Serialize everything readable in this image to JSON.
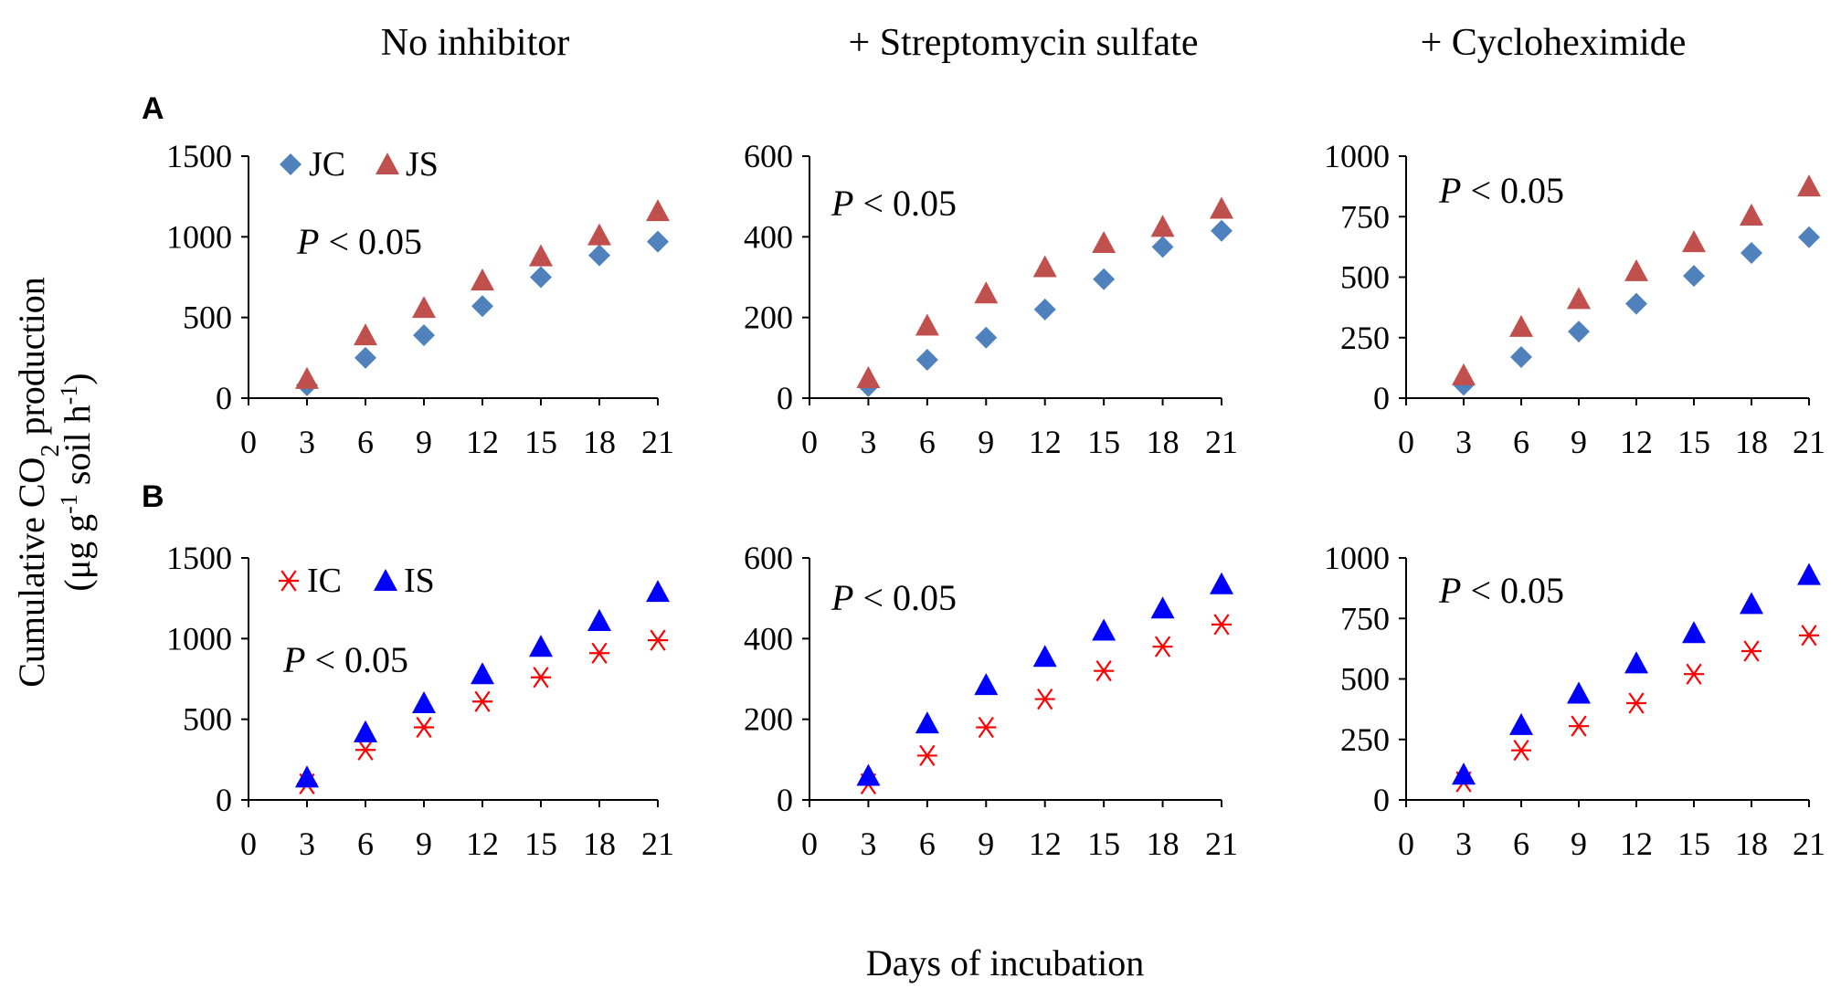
{
  "figure": {
    "column_titles": [
      "No inhibitor",
      "+ Streptomycin sulfate",
      "+ Cycloheximide"
    ],
    "row_labels": [
      "A",
      "B"
    ],
    "y_axis_title_line1": "Cumulative CO",
    "y_axis_title_sub": "2",
    "y_axis_title_line1_end": " production",
    "y_axis_title_line2_a": "(μg g",
    "y_axis_title_line2_sup1": "-1",
    "y_axis_title_line2_b": " soil h",
    "y_axis_title_line2_sup2": "-1",
    "y_axis_title_line2_c": ")",
    "x_axis_title": "Days of incubation",
    "p_italic": "P",
    "p_rest": " < 0.05"
  },
  "colors": {
    "JC": "#4f81bd",
    "JS": "#c0504d",
    "IC": "#ff0000",
    "IS": "#0000ff"
  },
  "chart_data": [
    {
      "type": "scatter",
      "row": "A",
      "title": "No inhibitor",
      "x": [
        3,
        6,
        9,
        12,
        15,
        18,
        21
      ],
      "xlim": [
        0,
        21
      ],
      "xticks": [
        0,
        3,
        6,
        9,
        12,
        15,
        18,
        21
      ],
      "ylim": [
        0,
        1500
      ],
      "yticks": [
        0,
        500,
        1000,
        1500
      ],
      "series": [
        {
          "name": "JC",
          "marker": "diamond",
          "values": [
            80,
            250,
            390,
            570,
            750,
            885,
            970
          ]
        },
        {
          "name": "JS",
          "marker": "triangle",
          "values": [
            120,
            390,
            560,
            730,
            880,
            1010,
            1160
          ]
        }
      ],
      "legend": [
        "JC",
        "JS"
      ],
      "annotation": "P < 0.05"
    },
    {
      "type": "scatter",
      "row": "A",
      "title": "+ Streptomycin sulfate",
      "x": [
        3,
        6,
        9,
        12,
        15,
        18,
        21
      ],
      "xlim": [
        0,
        21
      ],
      "xticks": [
        0,
        3,
        6,
        9,
        12,
        15,
        18,
        21
      ],
      "ylim": [
        0,
        600
      ],
      "yticks": [
        0,
        200,
        400,
        600
      ],
      "series": [
        {
          "name": "JC",
          "marker": "diamond",
          "values": [
            30,
            95,
            150,
            220,
            295,
            375,
            415
          ]
        },
        {
          "name": "JS",
          "marker": "triangle",
          "values": [
            50,
            180,
            260,
            325,
            385,
            425,
            470
          ]
        }
      ],
      "annotation": "P < 0.05"
    },
    {
      "type": "scatter",
      "row": "A",
      "title": "+ Cycloheximide",
      "x": [
        3,
        6,
        9,
        12,
        15,
        18,
        21
      ],
      "xlim": [
        0,
        21
      ],
      "xticks": [
        0,
        3,
        6,
        9,
        12,
        15,
        18,
        21
      ],
      "ylim": [
        0,
        1000
      ],
      "yticks": [
        0,
        250,
        500,
        750,
        1000
      ],
      "series": [
        {
          "name": "JC",
          "marker": "diamond",
          "values": [
            55,
            170,
            275,
            390,
            505,
            600,
            665
          ]
        },
        {
          "name": "JS",
          "marker": "triangle",
          "values": [
            95,
            295,
            410,
            525,
            645,
            755,
            875
          ]
        }
      ],
      "annotation": "P < 0.05"
    },
    {
      "type": "scatter",
      "row": "B",
      "title": "No inhibitor",
      "x": [
        3,
        6,
        9,
        12,
        15,
        18,
        21
      ],
      "xlim": [
        0,
        21
      ],
      "xticks": [
        0,
        3,
        6,
        9,
        12,
        15,
        18,
        21
      ],
      "ylim": [
        0,
        1500
      ],
      "yticks": [
        0,
        500,
        1000,
        1500
      ],
      "series": [
        {
          "name": "IC",
          "marker": "asterisk",
          "values": [
            100,
            310,
            450,
            610,
            760,
            910,
            990
          ]
        },
        {
          "name": "IS",
          "marker": "triangle",
          "values": [
            140,
            420,
            600,
            780,
            950,
            1110,
            1290
          ]
        }
      ],
      "legend": [
        "IC",
        "IS"
      ],
      "annotation": "P < 0.05"
    },
    {
      "type": "scatter",
      "row": "B",
      "title": "+ Streptomycin sulfate",
      "x": [
        3,
        6,
        9,
        12,
        15,
        18,
        21
      ],
      "xlim": [
        0,
        21
      ],
      "xticks": [
        0,
        3,
        6,
        9,
        12,
        15,
        18,
        21
      ],
      "ylim": [
        0,
        600
      ],
      "yticks": [
        0,
        200,
        400,
        600
      ],
      "series": [
        {
          "name": "IC",
          "marker": "asterisk",
          "values": [
            40,
            110,
            180,
            250,
            320,
            380,
            435
          ]
        },
        {
          "name": "IS",
          "marker": "triangle",
          "values": [
            60,
            190,
            285,
            355,
            420,
            475,
            535
          ]
        }
      ],
      "annotation": "P < 0.05"
    },
    {
      "type": "scatter",
      "row": "B",
      "title": "+ Cycloheximide",
      "x": [
        3,
        6,
        9,
        12,
        15,
        18,
        21
      ],
      "xlim": [
        0,
        21
      ],
      "xticks": [
        0,
        3,
        6,
        9,
        12,
        15,
        18,
        21
      ],
      "ylim": [
        0,
        1000
      ],
      "yticks": [
        0,
        250,
        500,
        750,
        1000
      ],
      "series": [
        {
          "name": "IC",
          "marker": "asterisk",
          "values": [
            75,
            205,
            305,
            400,
            520,
            615,
            680
          ]
        },
        {
          "name": "IS",
          "marker": "triangle",
          "values": [
            105,
            310,
            440,
            565,
            690,
            810,
            930
          ]
        }
      ],
      "annotation": "P < 0.05"
    }
  ]
}
